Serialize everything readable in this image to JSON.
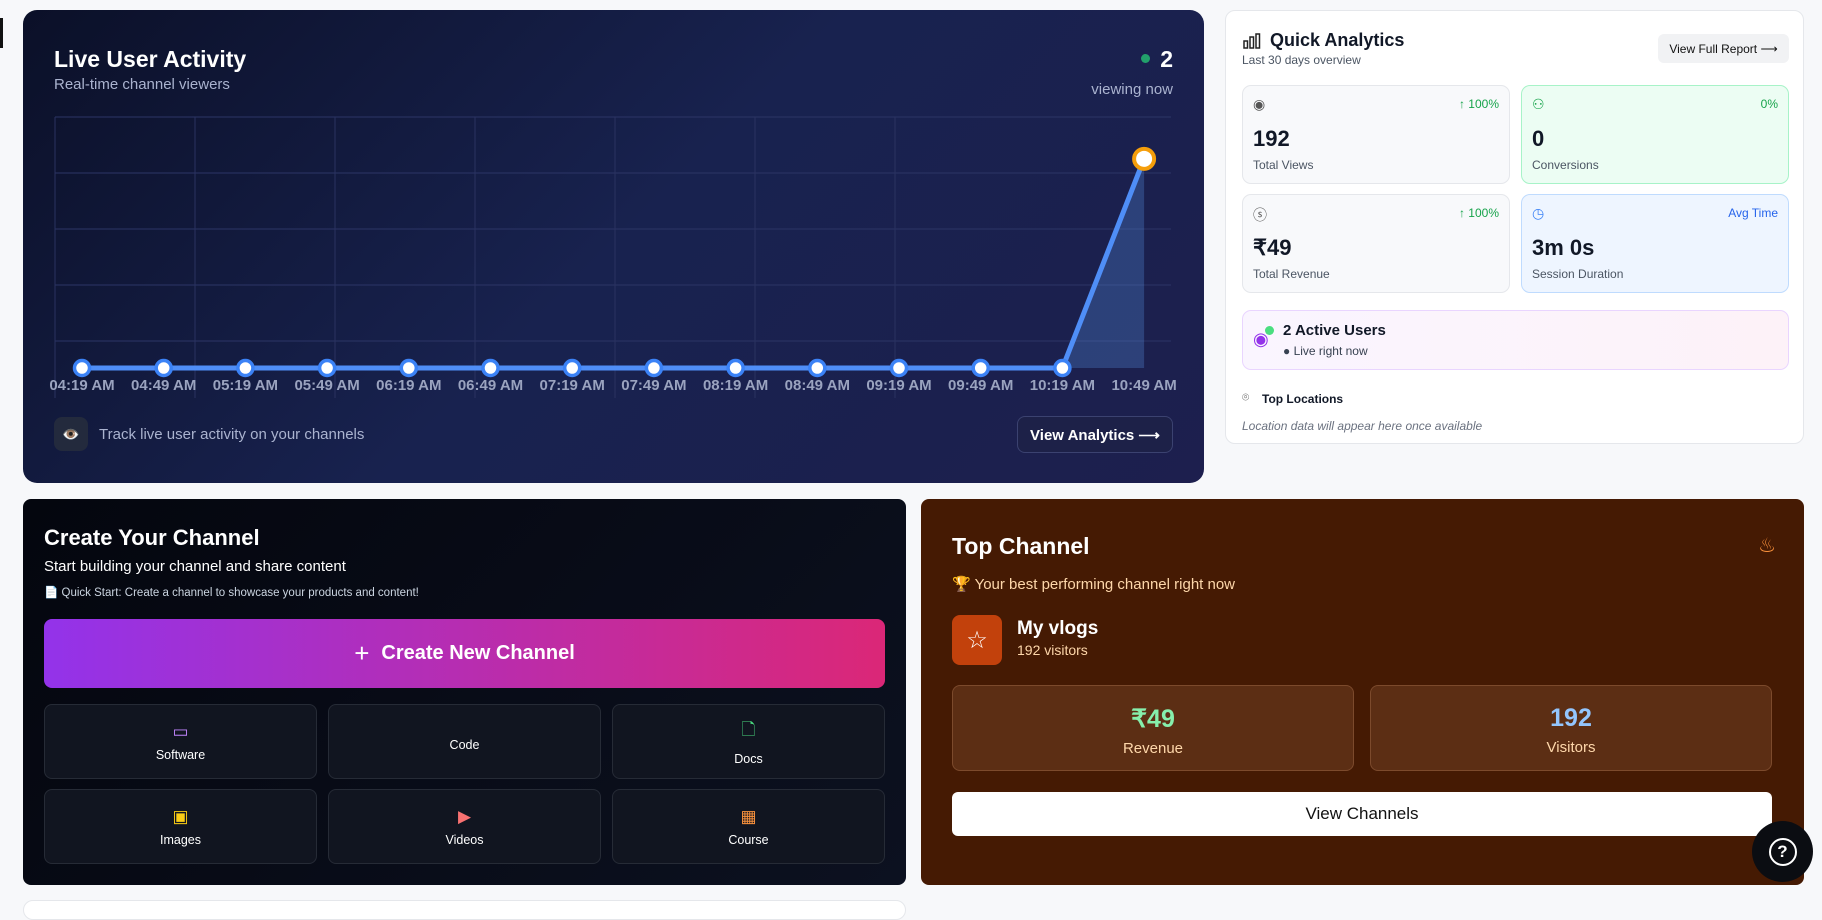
{
  "live": {
    "title": "Live User Activity",
    "subtitle": "Real-time channel viewers",
    "viewing_count": "2",
    "viewing_label": "viewing now",
    "footer_text": "Track live user activity on your channels",
    "view_analytics": "View Analytics ⟶",
    "colors": {
      "line": "#60a5fa",
      "last_point": "#f59e0b",
      "status_dot": "#22a06b"
    }
  },
  "chart_data": {
    "type": "line",
    "categories": [
      "04:19 AM",
      "04:49 AM",
      "05:19 AM",
      "05:49 AM",
      "06:19 AM",
      "06:49 AM",
      "07:19 AM",
      "07:49 AM",
      "08:19 AM",
      "08:49 AM",
      "09:19 AM",
      "09:49 AM",
      "10:19 AM",
      "10:49 AM"
    ],
    "values": [
      0,
      0,
      0,
      0,
      0,
      0,
      0,
      0,
      0,
      0,
      0,
      0,
      0,
      2
    ],
    "ylim": [
      0,
      2.4
    ],
    "grid": true,
    "xlabel": "",
    "ylabel": ""
  },
  "quick": {
    "title": "Quick Analytics",
    "subtitle": "Last 30 days overview",
    "report_button": "View Full Report ⟶",
    "cards": [
      {
        "icon": "eye-icon",
        "change": "↑ 100%",
        "value": "192",
        "label": "Total Views"
      },
      {
        "icon": "users-icon",
        "change": "0%",
        "value": "0",
        "label": "Conversions"
      },
      {
        "icon": "dollar-icon",
        "change": "↑ 100%",
        "value": "₹49",
        "label": "Total Revenue"
      },
      {
        "icon": "clock-icon",
        "change": "Avg Time",
        "value": "3m 0s",
        "label": "Session Duration"
      }
    ],
    "active_users": "2 Active Users",
    "live_text": "● Live right now",
    "top_locations": "Top Locations",
    "locations_empty": "Location data will appear here once available"
  },
  "create": {
    "title": "Create Your Channel",
    "subtitle": "Start building your channel and share content",
    "quick_start": "Quick Start: Create a channel to showcase your products and content!",
    "button": "Create New Channel",
    "types": [
      {
        "label": "Software",
        "icon": "monitor-icon",
        "color": "#c084fc"
      },
      {
        "label": "Code",
        "icon": "code-icon",
        "color": "#60a5fa"
      },
      {
        "label": "Docs",
        "icon": "file-icon",
        "color": "#4ade80"
      },
      {
        "label": "Images",
        "icon": "image-icon",
        "color": "#facc15"
      },
      {
        "label": "Videos",
        "icon": "video-icon",
        "color": "#f87171"
      },
      {
        "label": "Course",
        "icon": "presentation-icon",
        "color": "#fb923c"
      }
    ]
  },
  "top": {
    "title": "Top Channel",
    "subtitle": "Your best performing channel right now",
    "channel_name": "My vlogs",
    "channel_visitors": "192 visitors",
    "revenue_value": "₹49",
    "revenue_label": "Revenue",
    "visitors_value": "192",
    "visitors_label": "Visitors",
    "view_button": "View Channels"
  }
}
